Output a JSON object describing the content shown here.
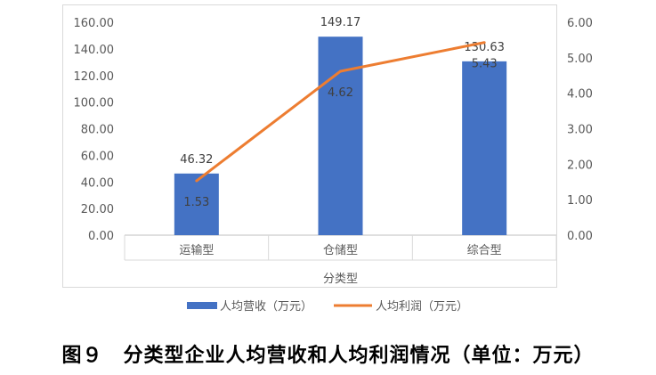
{
  "chart_data": {
    "type": "bar",
    "categories": [
      "运输型",
      "仓储型",
      "综合型"
    ],
    "xlabel": "分类型",
    "series": [
      {
        "name": "人均营收（万元）",
        "kind": "bar",
        "axis": "left",
        "color": "#4472C4",
        "values": [
          46.32,
          149.17,
          130.63
        ],
        "labels": [
          "46.32",
          "149.17",
          "130.63"
        ]
      },
      {
        "name": "人均利润（万元）",
        "kind": "line",
        "axis": "right",
        "color": "#ED7D31",
        "values": [
          1.53,
          4.62,
          5.43
        ],
        "labels": [
          "1.53",
          "4.62",
          "5.43"
        ]
      }
    ],
    "y_left": {
      "ylim": [
        0,
        160
      ],
      "ticks": [
        "0.00",
        "20.00",
        "40.00",
        "60.00",
        "80.00",
        "100.00",
        "120.00",
        "140.00",
        "160.00"
      ]
    },
    "y_right": {
      "ylim": [
        0,
        6
      ],
      "ticks": [
        "0.00",
        "1.00",
        "2.00",
        "3.00",
        "4.00",
        "5.00",
        "6.00"
      ]
    },
    "legend": "bottom",
    "grid": false
  },
  "caption": "图９　分类型企业人均营收和人均利润情况（单位：万元）"
}
